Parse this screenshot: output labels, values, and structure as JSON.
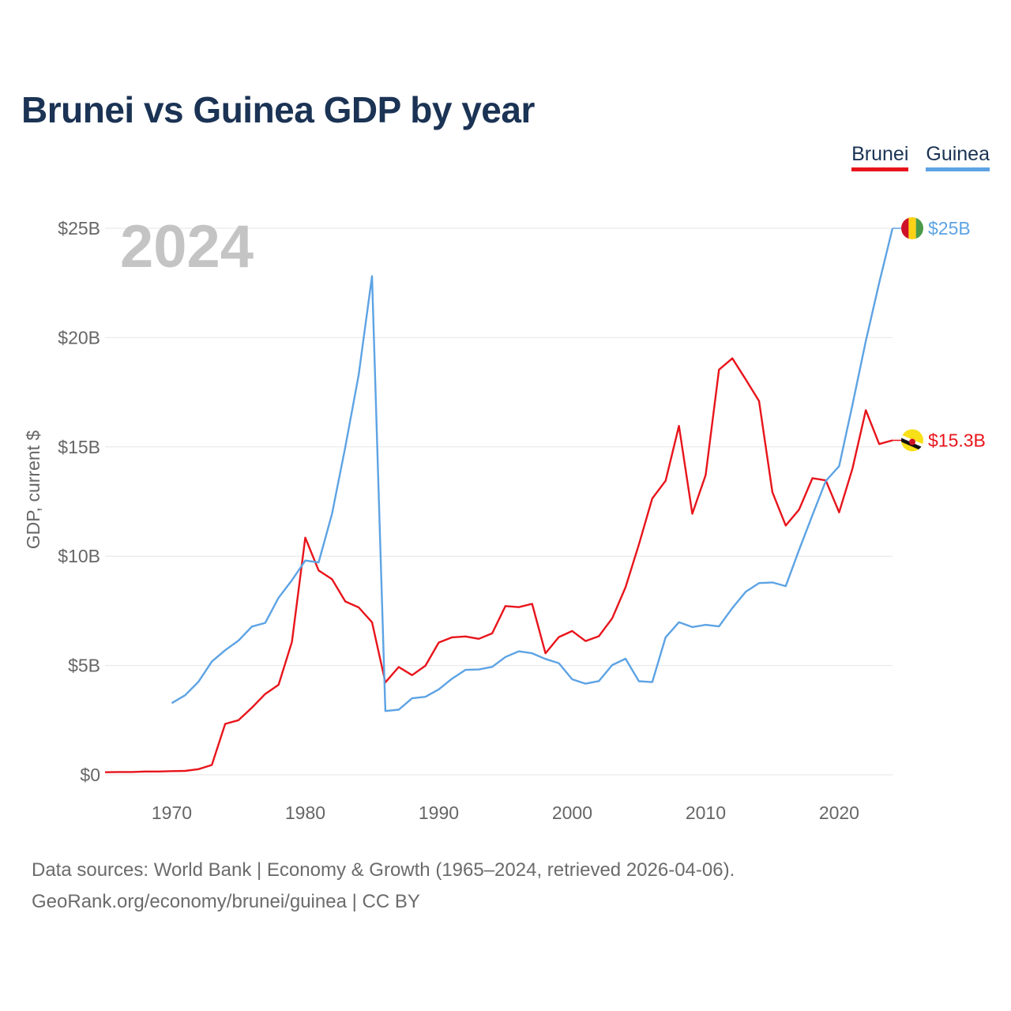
{
  "title": "Brunei vs Guinea GDP by year",
  "legend": [
    {
      "label": "Brunei",
      "color": "#e8141b"
    },
    {
      "label": "Guinea",
      "color": "#5da3e4"
    }
  ],
  "overlay_year": "2024",
  "footer": {
    "line1": "Data sources: World Bank | Economy & Growth (1965–2024, retrieved 2026-04-06).",
    "line2": "GeoRank.org/economy/brunei/guinea | CC BY"
  },
  "chart_data": {
    "type": "line",
    "ylabel": "GDP, current $",
    "xlim": [
      1965,
      2024
    ],
    "ylim": [
      0,
      25
    ],
    "x_ticks": [
      1970,
      1980,
      1990,
      2000,
      2010,
      2020
    ],
    "x_tick_labels": [
      "1970",
      "1980",
      "1990",
      "2000",
      "2010",
      "2020"
    ],
    "y_ticks": [
      0,
      5,
      10,
      15,
      20,
      25
    ],
    "y_tick_labels": [
      "$0",
      "$5B",
      "$10B",
      "$15B",
      "$20B",
      "$25B"
    ],
    "series": [
      {
        "name": "Brunei",
        "color": "#e8141b",
        "end_label": "$15.3B",
        "flag": "brunei",
        "x": [
          1965,
          1966,
          1967,
          1968,
          1969,
          1970,
          1971,
          1972,
          1973,
          1974,
          1975,
          1976,
          1977,
          1978,
          1979,
          1980,
          1981,
          1982,
          1983,
          1984,
          1985,
          1986,
          1987,
          1988,
          1989,
          1990,
          1991,
          1992,
          1993,
          1994,
          1995,
          1996,
          1997,
          1998,
          1999,
          2000,
          2001,
          2002,
          2003,
          2004,
          2005,
          2006,
          2007,
          2008,
          2009,
          2010,
          2011,
          2012,
          2013,
          2014,
          2015,
          2016,
          2017,
          2018,
          2019,
          2020,
          2021,
          2022,
          2023,
          2024
        ],
        "values": [
          0.12,
          0.13,
          0.13,
          0.15,
          0.15,
          0.17,
          0.18,
          0.26,
          0.45,
          2.33,
          2.5,
          3.07,
          3.7,
          4.12,
          6.08,
          10.85,
          9.35,
          8.95,
          7.93,
          7.66,
          6.98,
          4.23,
          4.93,
          4.56,
          4.99,
          6.05,
          6.29,
          6.33,
          6.22,
          6.47,
          7.72,
          7.67,
          7.82,
          5.56,
          6.3,
          6.58,
          6.12,
          6.34,
          7.16,
          8.58,
          10.54,
          12.64,
          13.45,
          15.96,
          11.94,
          13.71,
          18.53,
          19.05,
          18.09,
          17.1,
          12.93,
          11.4,
          12.13,
          13.57,
          13.47,
          12.01,
          14.01,
          16.68,
          15.13,
          15.3
        ]
      },
      {
        "name": "Guinea",
        "color": "#5da3e4",
        "end_label": "$25B",
        "flag": "guinea",
        "x": [
          1970,
          1971,
          1972,
          1973,
          1974,
          1975,
          1976,
          1977,
          1978,
          1979,
          1980,
          1981,
          1982,
          1983,
          1984,
          1985,
          1986,
          1987,
          1988,
          1989,
          1990,
          1991,
          1992,
          1993,
          1994,
          1995,
          1996,
          1997,
          1998,
          1999,
          2000,
          2001,
          2002,
          2003,
          2004,
          2005,
          2006,
          2007,
          2008,
          2009,
          2010,
          2011,
          2012,
          2013,
          2014,
          2015,
          2016,
          2017,
          2018,
          2019,
          2020,
          2021,
          2022,
          2023,
          2024
        ],
        "values": [
          3.28,
          3.64,
          4.26,
          5.18,
          5.7,
          6.14,
          6.78,
          6.95,
          8.1,
          8.9,
          9.8,
          9.72,
          11.93,
          15.0,
          18.29,
          22.81,
          2.92,
          2.98,
          3.5,
          3.57,
          3.91,
          4.4,
          4.8,
          4.82,
          4.94,
          5.39,
          5.65,
          5.56,
          5.3,
          5.11,
          4.37,
          4.17,
          4.29,
          5.02,
          5.31,
          4.28,
          4.24,
          6.29,
          6.98,
          6.76,
          6.86,
          6.79,
          7.63,
          8.37,
          8.77,
          8.8,
          8.63,
          10.29,
          11.88,
          13.44,
          14.12,
          16.93,
          19.85,
          22.5,
          25.0
        ]
      }
    ]
  }
}
